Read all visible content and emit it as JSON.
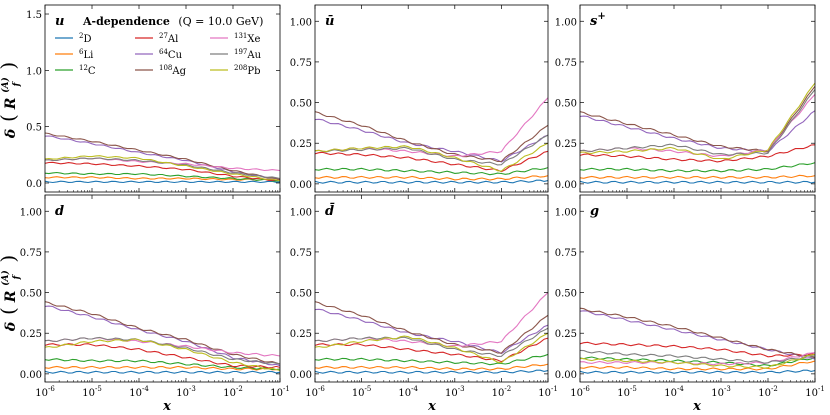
{
  "figure": {
    "ylabel_main": "δ",
    "ylabel_sub": "R",
    "ylabel_f": "f",
    "ylabel_A": "(A)",
    "xlabel": "x",
    "title_text": "A-dependence",
    "title_q": "(Q = 10.0 GeV)"
  },
  "legend": [
    {
      "name": "2D",
      "num": "2",
      "sym": "D",
      "color": "#1f77b4"
    },
    {
      "name": "6Li",
      "num": "6",
      "sym": "Li",
      "color": "#ff7f0e"
    },
    {
      "name": "12C",
      "num": "12",
      "sym": "C",
      "color": "#2ca02c"
    },
    {
      "name": "27Al",
      "num": "27",
      "sym": "Al",
      "color": "#d62728"
    },
    {
      "name": "64Cu",
      "num": "64",
      "sym": "Cu",
      "color": "#9467bd"
    },
    {
      "name": "108Ag",
      "num": "108",
      "sym": "Ag",
      "color": "#8c564b"
    },
    {
      "name": "131Xe",
      "num": "131",
      "sym": "Xe",
      "color": "#e377c2"
    },
    {
      "name": "197Au",
      "num": "197",
      "sym": "Au",
      "color": "#7f7f7f"
    },
    {
      "name": "208Pb",
      "num": "208",
      "sym": "Pb",
      "color": "#bcbd22"
    }
  ],
  "chart_data": [
    {
      "type": "line",
      "panel": "u",
      "label": "u",
      "label_sup": "",
      "x": [
        1e-06,
        1e-05,
        0.0001,
        0.001,
        0.01,
        0.1
      ],
      "xscale": "log",
      "xlim": [
        1e-06,
        0.1
      ],
      "ylim": [
        -0.08,
        1.58
      ],
      "yticks": [
        0.0,
        0.5,
        1.0,
        1.5
      ],
      "ytick_labels": [
        "0.0",
        "0.5",
        "1.0",
        "1.5"
      ],
      "xtick_labels": [
        "10^-6",
        "10^-5",
        "10^-4",
        "10^-3",
        "10^-2",
        "10^-1"
      ],
      "series": [
        {
          "name": "2D",
          "values": [
            0.01,
            0.01,
            0.01,
            0.01,
            0.01,
            0.01
          ]
        },
        {
          "name": "6Li",
          "values": [
            0.05,
            0.05,
            0.04,
            0.04,
            0.03,
            0.03
          ]
        },
        {
          "name": "12C",
          "values": [
            0.09,
            0.08,
            0.08,
            0.06,
            0.04,
            0.02
          ]
        },
        {
          "name": "27Al",
          "values": [
            0.18,
            0.17,
            0.15,
            0.12,
            0.06,
            0.02
          ]
        },
        {
          "name": "64Cu",
          "values": [
            0.42,
            0.35,
            0.27,
            0.2,
            0.1,
            0.03
          ]
        },
        {
          "name": "108Ag",
          "values": [
            0.44,
            0.37,
            0.29,
            0.21,
            0.11,
            0.03
          ]
        },
        {
          "name": "131Xe",
          "values": [
            0.2,
            0.22,
            0.19,
            0.17,
            0.13,
            0.11
          ]
        },
        {
          "name": "197Au",
          "values": [
            0.2,
            0.22,
            0.2,
            0.16,
            0.09,
            0.04
          ]
        },
        {
          "name": "208Pb",
          "values": [
            0.21,
            0.24,
            0.22,
            0.15,
            0.08,
            0.02
          ]
        }
      ]
    },
    {
      "type": "line",
      "panel": "ubar",
      "label": "ū",
      "label_sup": "",
      "x": [
        1e-06,
        1e-05,
        0.0001,
        0.001,
        0.01,
        0.1
      ],
      "xscale": "log",
      "xlim": [
        1e-06,
        0.1
      ],
      "ylim": [
        -0.05,
        1.1
      ],
      "yticks": [
        0.0,
        0.25,
        0.5,
        0.75,
        1.0
      ],
      "ytick_labels": [
        "0.00",
        "0.25",
        "0.50",
        "0.75",
        "1.00"
      ],
      "xtick_labels": [
        "10^-6",
        "10^-5",
        "10^-4",
        "10^-3",
        "10^-2",
        "10^-1"
      ],
      "series": [
        {
          "name": "2D",
          "values": [
            0.01,
            0.01,
            0.01,
            0.01,
            0.01,
            0.02
          ]
        },
        {
          "name": "6Li",
          "values": [
            0.04,
            0.04,
            0.04,
            0.03,
            0.03,
            0.05
          ]
        },
        {
          "name": "12C",
          "values": [
            0.09,
            0.09,
            0.08,
            0.07,
            0.06,
            0.1
          ]
        },
        {
          "name": "27Al",
          "values": [
            0.19,
            0.18,
            0.16,
            0.12,
            0.08,
            0.2
          ]
        },
        {
          "name": "64Cu",
          "values": [
            0.4,
            0.33,
            0.25,
            0.2,
            0.14,
            0.3
          ]
        },
        {
          "name": "108Ag",
          "values": [
            0.44,
            0.36,
            0.26,
            0.18,
            0.14,
            0.36
          ]
        },
        {
          "name": "131Xe",
          "values": [
            0.2,
            0.22,
            0.2,
            0.17,
            0.2,
            0.53
          ]
        },
        {
          "name": "197Au",
          "values": [
            0.2,
            0.21,
            0.22,
            0.15,
            0.12,
            0.3
          ]
        },
        {
          "name": "208Pb",
          "values": [
            0.2,
            0.22,
            0.23,
            0.16,
            0.08,
            0.25
          ]
        }
      ]
    },
    {
      "type": "line",
      "panel": "s+",
      "label": "s",
      "label_sup": "+",
      "x": [
        1e-06,
        1e-05,
        0.0001,
        0.001,
        0.01,
        0.1
      ],
      "xscale": "log",
      "xlim": [
        1e-06,
        0.1
      ],
      "ylim": [
        -0.05,
        1.1
      ],
      "yticks": [
        0.0,
        0.25,
        0.5,
        0.75,
        1.0
      ],
      "ytick_labels": [
        "0.00",
        "0.25",
        "0.50",
        "0.75",
        "1.00"
      ],
      "xtick_labels": [
        "10^-6",
        "10^-5",
        "10^-4",
        "10^-3",
        "10^-2",
        "10^-1"
      ],
      "series": [
        {
          "name": "2D",
          "values": [
            0.01,
            0.01,
            0.01,
            0.01,
            0.01,
            0.01
          ]
        },
        {
          "name": "6Li",
          "values": [
            0.04,
            0.04,
            0.04,
            0.04,
            0.04,
            0.05
          ]
        },
        {
          "name": "12C",
          "values": [
            0.09,
            0.09,
            0.08,
            0.08,
            0.09,
            0.13
          ]
        },
        {
          "name": "27Al",
          "values": [
            0.18,
            0.17,
            0.15,
            0.14,
            0.17,
            0.24
          ]
        },
        {
          "name": "64Cu",
          "values": [
            0.42,
            0.35,
            0.28,
            0.22,
            0.2,
            0.45
          ]
        },
        {
          "name": "108Ag",
          "values": [
            0.44,
            0.37,
            0.3,
            0.23,
            0.2,
            0.6
          ]
        },
        {
          "name": "131Xe",
          "values": [
            0.2,
            0.22,
            0.2,
            0.17,
            0.21,
            0.55
          ]
        },
        {
          "name": "197Au",
          "values": [
            0.2,
            0.22,
            0.24,
            0.18,
            0.19,
            0.58
          ]
        },
        {
          "name": "208Pb",
          "values": [
            0.19,
            0.2,
            0.22,
            0.15,
            0.21,
            0.62
          ]
        }
      ]
    },
    {
      "type": "line",
      "panel": "d",
      "label": "d",
      "label_sup": "",
      "x": [
        1e-06,
        1e-05,
        0.0001,
        0.001,
        0.01,
        0.1
      ],
      "xscale": "log",
      "xlim": [
        1e-06,
        0.1
      ],
      "ylim": [
        -0.05,
        1.1
      ],
      "yticks": [
        0.0,
        0.25,
        0.5,
        0.75,
        1.0
      ],
      "ytick_labels": [
        "0.00",
        "0.25",
        "0.50",
        "0.75",
        "1.00"
      ],
      "xtick_labels": [
        "10^-6",
        "10^-5",
        "10^-4",
        "10^-3",
        "10^-2",
        "10^-1"
      ],
      "series": [
        {
          "name": "2D",
          "values": [
            0.01,
            0.01,
            0.01,
            0.01,
            0.01,
            0.01
          ]
        },
        {
          "name": "6Li",
          "values": [
            0.04,
            0.04,
            0.04,
            0.04,
            0.03,
            0.03
          ]
        },
        {
          "name": "12C",
          "values": [
            0.09,
            0.08,
            0.08,
            0.06,
            0.04,
            0.03
          ]
        },
        {
          "name": "27Al",
          "values": [
            0.18,
            0.18,
            0.15,
            0.1,
            0.05,
            0.04
          ]
        },
        {
          "name": "64Cu",
          "values": [
            0.42,
            0.35,
            0.27,
            0.2,
            0.1,
            0.05
          ]
        },
        {
          "name": "108Ag",
          "values": [
            0.44,
            0.37,
            0.28,
            0.21,
            0.12,
            0.06
          ]
        },
        {
          "name": "131Xe",
          "values": [
            0.2,
            0.22,
            0.2,
            0.17,
            0.13,
            0.11
          ]
        },
        {
          "name": "197Au",
          "values": [
            0.2,
            0.22,
            0.21,
            0.16,
            0.09,
            0.06
          ]
        },
        {
          "name": "208Pb",
          "values": [
            0.16,
            0.2,
            0.21,
            0.15,
            0.07,
            0.02
          ]
        }
      ]
    },
    {
      "type": "line",
      "panel": "dbar",
      "label": "d̄",
      "label_sup": "",
      "x": [
        1e-06,
        1e-05,
        0.0001,
        0.001,
        0.01,
        0.1
      ],
      "xscale": "log",
      "xlim": [
        1e-06,
        0.1
      ],
      "ylim": [
        -0.05,
        1.1
      ],
      "yticks": [
        0.0,
        0.25,
        0.5,
        0.75,
        1.0
      ],
      "ytick_labels": [
        "0.00",
        "0.25",
        "0.50",
        "0.75",
        "1.00"
      ],
      "xtick_labels": [
        "10^-6",
        "10^-5",
        "10^-4",
        "10^-3",
        "10^-2",
        "10^-1"
      ],
      "series": [
        {
          "name": "2D",
          "values": [
            0.01,
            0.01,
            0.01,
            0.01,
            0.01,
            0.02
          ]
        },
        {
          "name": "6Li",
          "values": [
            0.04,
            0.04,
            0.04,
            0.03,
            0.03,
            0.06
          ]
        },
        {
          "name": "12C",
          "values": [
            0.09,
            0.09,
            0.08,
            0.07,
            0.06,
            0.12
          ]
        },
        {
          "name": "27Al",
          "values": [
            0.18,
            0.18,
            0.15,
            0.12,
            0.08,
            0.22
          ]
        },
        {
          "name": "64Cu",
          "values": [
            0.4,
            0.33,
            0.25,
            0.2,
            0.13,
            0.3
          ]
        },
        {
          "name": "108Ag",
          "values": [
            0.44,
            0.36,
            0.26,
            0.18,
            0.13,
            0.36
          ]
        },
        {
          "name": "131Xe",
          "values": [
            0.2,
            0.22,
            0.2,
            0.17,
            0.2,
            0.5
          ]
        },
        {
          "name": "197Au",
          "values": [
            0.2,
            0.22,
            0.22,
            0.15,
            0.11,
            0.28
          ]
        },
        {
          "name": "208Pb",
          "values": [
            0.16,
            0.2,
            0.23,
            0.16,
            0.07,
            0.25
          ]
        }
      ]
    },
    {
      "type": "line",
      "panel": "g",
      "label": "g",
      "label_sup": "",
      "x": [
        1e-06,
        1e-05,
        0.0001,
        0.001,
        0.01,
        0.1
      ],
      "xscale": "log",
      "xlim": [
        1e-06,
        0.1
      ],
      "ylim": [
        -0.05,
        1.1
      ],
      "yticks": [
        0.0,
        0.25,
        0.5,
        0.75,
        1.0
      ],
      "ytick_labels": [
        "0.00",
        "0.25",
        "0.50",
        "0.75",
        "1.00"
      ],
      "xtick_labels": [
        "10^-6",
        "10^-5",
        "10^-4",
        "10^-3",
        "10^-2",
        "10^-1"
      ],
      "series": [
        {
          "name": "2D",
          "values": [
            0.01,
            0.01,
            0.01,
            0.01,
            0.01,
            0.02
          ]
        },
        {
          "name": "6Li",
          "values": [
            0.04,
            0.04,
            0.03,
            0.03,
            0.03,
            0.08
          ]
        },
        {
          "name": "12C",
          "values": [
            0.1,
            0.09,
            0.08,
            0.07,
            0.05,
            0.1
          ]
        },
        {
          "name": "27Al",
          "values": [
            0.19,
            0.18,
            0.17,
            0.15,
            0.11,
            0.12
          ]
        },
        {
          "name": "64Cu",
          "values": [
            0.39,
            0.33,
            0.27,
            0.21,
            0.15,
            0.09
          ]
        },
        {
          "name": "108Ag",
          "values": [
            0.4,
            0.35,
            0.29,
            0.22,
            0.15,
            0.1
          ]
        },
        {
          "name": "131Xe",
          "values": [
            0.07,
            0.07,
            0.07,
            0.06,
            0.07,
            0.13
          ]
        },
        {
          "name": "197Au",
          "values": [
            0.14,
            0.12,
            0.11,
            0.09,
            0.07,
            0.11
          ]
        },
        {
          "name": "208Pb",
          "values": [
            0.09,
            0.08,
            0.07,
            0.05,
            0.04,
            0.12
          ]
        }
      ]
    }
  ]
}
